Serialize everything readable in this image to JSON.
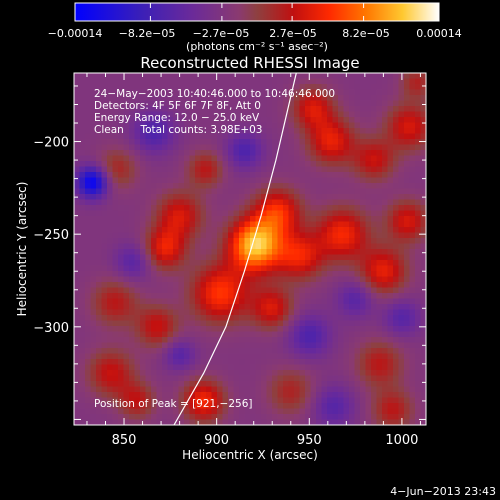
{
  "chart_data": {
    "type": "heatmap",
    "title": "Reconstructed RHESSI Image",
    "xlabel": "Heliocentric X (arcsec)",
    "ylabel": "Heliocentric Y (arcsec)",
    "xlim": [
      823,
      1013
    ],
    "ylim": [
      -353,
      -163
    ],
    "x_ticks": [
      850,
      900,
      950,
      1000
    ],
    "y_ticks": [
      -200,
      -250,
      -300
    ],
    "colorbar": {
      "range": [
        -0.00014,
        0.00014
      ],
      "tick_values": [
        -0.00014,
        -8.2e-05,
        -2.7e-05,
        2.7e-05,
        8.2e-05,
        0.00014
      ],
      "tick_labels": [
        "−0.00014",
        "−8.2e−05",
        "−2.7e−05",
        "2.7e−05",
        "8.2e−05",
        "0.00014"
      ],
      "unit_label": "(photons cm⁻² s⁻¹ asec⁻²)"
    },
    "annotations": [
      "24−May−2003 10:40:46.000 to 10:46:46.000",
      "Detectors: 4F 5F 6F 7F 8F, Att 0",
      "Energy Range: 12.0 − 25.0 keV",
      "Clean     Total counts: 3.98E+03"
    ],
    "peak_label": "Position of Peak = [921,−256]",
    "peak": {
      "x": 921,
      "y": -256,
      "value": 0.00014
    },
    "limb_line": [
      [
        877,
        -353
      ],
      [
        893,
        -325
      ],
      [
        905,
        -300
      ],
      [
        915,
        -270
      ],
      [
        924,
        -240
      ],
      [
        932,
        -210
      ],
      [
        939,
        -180
      ],
      [
        943,
        -163
      ]
    ],
    "sources": [
      {
        "x": 921,
        "y": -256,
        "sigma": 10,
        "amp": 1.0
      },
      {
        "x": 933,
        "y": -238,
        "sigma": 9,
        "amp": 0.55
      },
      {
        "x": 902,
        "y": -282,
        "sigma": 11,
        "amp": 0.6
      },
      {
        "x": 930,
        "y": -290,
        "sigma": 8,
        "amp": 0.45
      },
      {
        "x": 945,
        "y": -262,
        "sigma": 9,
        "amp": 0.5
      },
      {
        "x": 968,
        "y": -250,
        "sigma": 10,
        "amp": 0.55
      },
      {
        "x": 990,
        "y": -270,
        "sigma": 9,
        "amp": 0.5
      },
      {
        "x": 1003,
        "y": -243,
        "sigma": 8,
        "amp": 0.45
      },
      {
        "x": 962,
        "y": -200,
        "sigma": 9,
        "amp": 0.5
      },
      {
        "x": 952,
        "y": -182,
        "sigma": 8,
        "amp": 0.45
      },
      {
        "x": 985,
        "y": -210,
        "sigma": 8,
        "amp": 0.4
      },
      {
        "x": 1004,
        "y": -192,
        "sigma": 9,
        "amp": 0.45
      },
      {
        "x": 880,
        "y": -240,
        "sigma": 9,
        "amp": 0.45
      },
      {
        "x": 872,
        "y": -258,
        "sigma": 8,
        "amp": 0.5
      },
      {
        "x": 894,
        "y": -215,
        "sigma": 7,
        "amp": 0.35
      },
      {
        "x": 845,
        "y": -287,
        "sigma": 9,
        "amp": 0.35
      },
      {
        "x": 868,
        "y": -300,
        "sigma": 8,
        "amp": 0.4
      },
      {
        "x": 843,
        "y": -325,
        "sigma": 9,
        "amp": 0.4
      },
      {
        "x": 857,
        "y": -340,
        "sigma": 7,
        "amp": 0.35
      },
      {
        "x": 893,
        "y": -340,
        "sigma": 8,
        "amp": 0.55
      },
      {
        "x": 940,
        "y": -335,
        "sigma": 9,
        "amp": 0.3
      },
      {
        "x": 988,
        "y": -320,
        "sigma": 9,
        "amp": 0.35
      },
      {
        "x": 995,
        "y": -345,
        "sigma": 8,
        "amp": 0.35
      },
      {
        "x": 846,
        "y": -215,
        "sigma": 8,
        "amp": 0.3
      },
      {
        "x": 833,
        "y": -222,
        "sigma": 6,
        "amp": -0.8
      },
      {
        "x": 866,
        "y": -195,
        "sigma": 8,
        "amp": -0.35
      },
      {
        "x": 855,
        "y": -265,
        "sigma": 7,
        "amp": -0.3
      },
      {
        "x": 915,
        "y": -205,
        "sigma": 7,
        "amp": -0.35
      },
      {
        "x": 950,
        "y": -305,
        "sigma": 8,
        "amp": -0.35
      },
      {
        "x": 975,
        "y": -285,
        "sigma": 7,
        "amp": -0.3
      },
      {
        "x": 1000,
        "y": -295,
        "sigma": 7,
        "amp": -0.3
      },
      {
        "x": 963,
        "y": -343,
        "sigma": 8,
        "amp": -0.3
      },
      {
        "x": 880,
        "y": -315,
        "sigma": 6,
        "amp": -0.3
      },
      {
        "x": 1008,
        "y": -168,
        "sigma": 6,
        "amp": 0.3
      }
    ]
  },
  "footer": {
    "date": "4−Jun−2013 23:43"
  }
}
